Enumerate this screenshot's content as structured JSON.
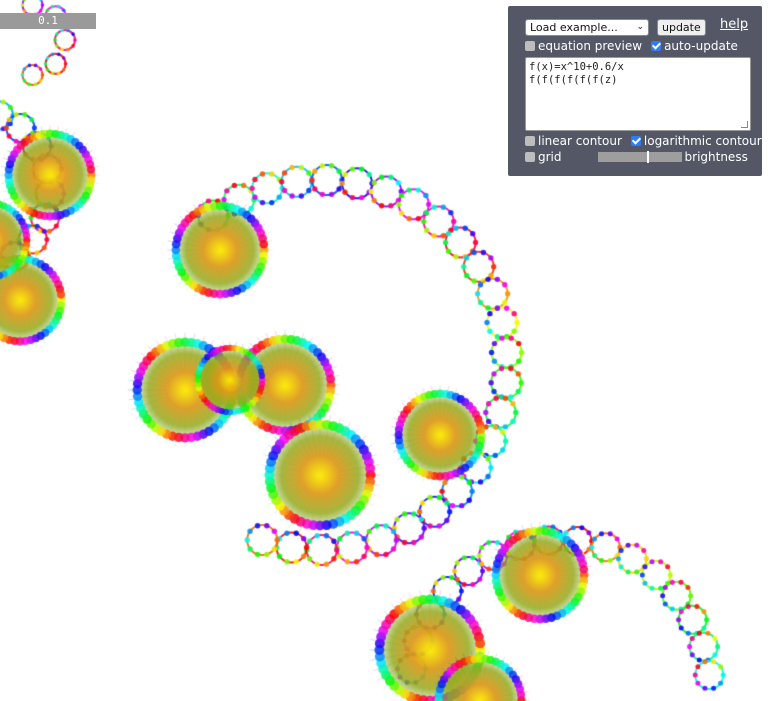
{
  "scale_badge": "0.1",
  "panel": {
    "example_select": "Load example...",
    "update_button": "update",
    "help_link": "help",
    "equation_preview": {
      "label": "equation preview",
      "checked": false
    },
    "auto_update": {
      "label": "auto-update",
      "checked": true
    },
    "editor_lines": [
      "f(x)=x^10+0.6/x",
      "f(f(f(f(f(f(z)"
    ],
    "linear_contour": {
      "label": "linear contour",
      "checked": false
    },
    "logarithmic_contour": {
      "label": "logarithmic contour",
      "checked": true
    },
    "grid": {
      "label": "grid",
      "checked": false
    },
    "brightness": {
      "label": "brightness",
      "value": 0.6
    }
  },
  "colors": {
    "panel_bg": "#545866",
    "checkbox_on": "#2f7cf6"
  }
}
